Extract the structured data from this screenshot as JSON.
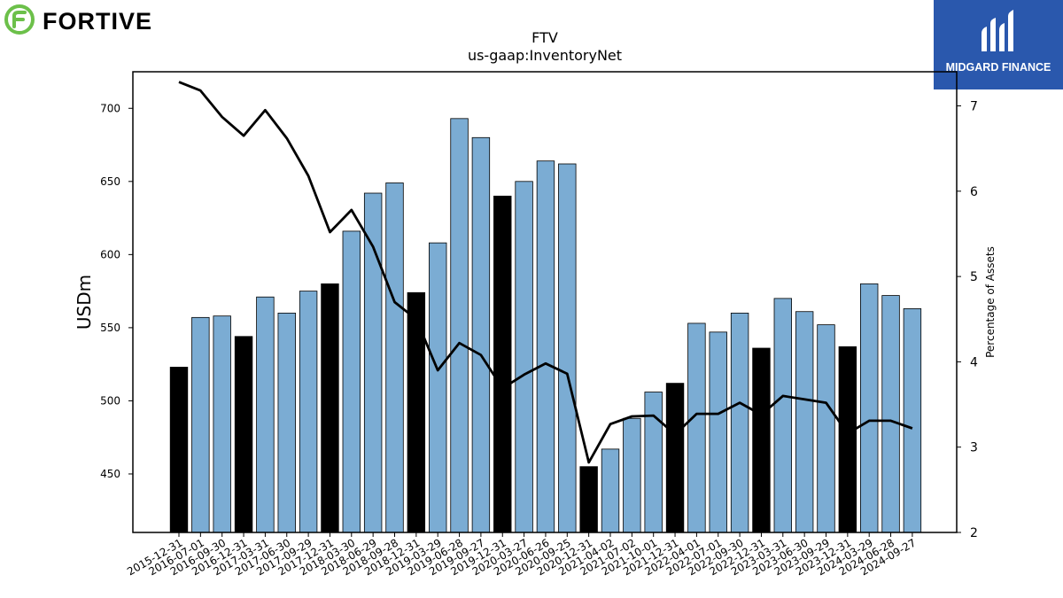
{
  "brand": {
    "left_name": "FORTIVE",
    "right_name": "MIDGARD FINANCE",
    "left_color": "#6cc04a",
    "right_bg": "#2a58ad"
  },
  "chart_data": {
    "type": "bar",
    "title": "FTV",
    "subtitle": "us-gaap:InventoryNet",
    "ylabel": "USDm",
    "y2label": "Percentage of Assets",
    "ylim": [
      410,
      725
    ],
    "y2lim": [
      2,
      7.4
    ],
    "yticks": [
      450,
      500,
      550,
      600,
      650,
      700
    ],
    "y2ticks": [
      2,
      3,
      4,
      5,
      6,
      7
    ],
    "categories": [
      "2015-12-31",
      "2016-07-01",
      "2016-09-30",
      "2016-12-31",
      "2017-03-31",
      "2017-06-30",
      "2017-09-29",
      "2017-12-31",
      "2018-03-30",
      "2018-06-29",
      "2018-09-28",
      "2018-12-31",
      "2019-03-29",
      "2019-06-28",
      "2019-09-27",
      "2019-12-31",
      "2020-03-27",
      "2020-06-26",
      "2020-09-25",
      "2020-12-31",
      "2021-04-02",
      "2021-07-02",
      "2021-10-01",
      "2021-12-31",
      "2022-04-01",
      "2022-07-01",
      "2022-09-30",
      "2022-12-31",
      "2023-03-31",
      "2023-06-30",
      "2023-09-29",
      "2023-12-31",
      "2024-03-29",
      "2024-06-28",
      "2024-09-27"
    ],
    "series": [
      {
        "values": [
          523,
          557,
          558,
          544,
          571,
          560,
          575,
          580,
          616,
          642,
          649,
          574,
          608,
          693,
          680,
          640,
          650,
          664,
          662,
          455,
          467,
          488,
          506,
          512,
          553,
          547,
          560,
          536,
          570,
          561,
          552,
          537,
          580,
          572,
          563
        ],
        "axis": "left"
      },
      {
        "values": [
          7.28,
          7.18,
          6.87,
          6.65,
          6.95,
          6.62,
          6.18,
          5.52,
          5.78,
          5.35,
          4.7,
          4.5,
          3.9,
          4.22,
          4.08,
          3.69,
          3.85,
          3.98,
          3.86,
          2.82,
          3.27,
          3.36,
          3.37,
          3.15,
          3.39,
          3.39,
          3.52,
          3.38,
          3.6,
          3.56,
          3.52,
          3.16,
          3.31,
          3.31,
          3.22
        ],
        "axis": "right"
      }
    ],
    "year_end_highlight": [
      true,
      false,
      false,
      true,
      false,
      false,
      false,
      true,
      false,
      false,
      false,
      true,
      false,
      false,
      false,
      true,
      false,
      false,
      false,
      true,
      false,
      false,
      false,
      true,
      false,
      false,
      false,
      true,
      false,
      false,
      false,
      true,
      false,
      false,
      false
    ],
    "colors": {
      "bar": "#7bacd3",
      "bar_year_end": "#000000",
      "line": "#000000"
    },
    "grid": false,
    "legend": "none"
  }
}
